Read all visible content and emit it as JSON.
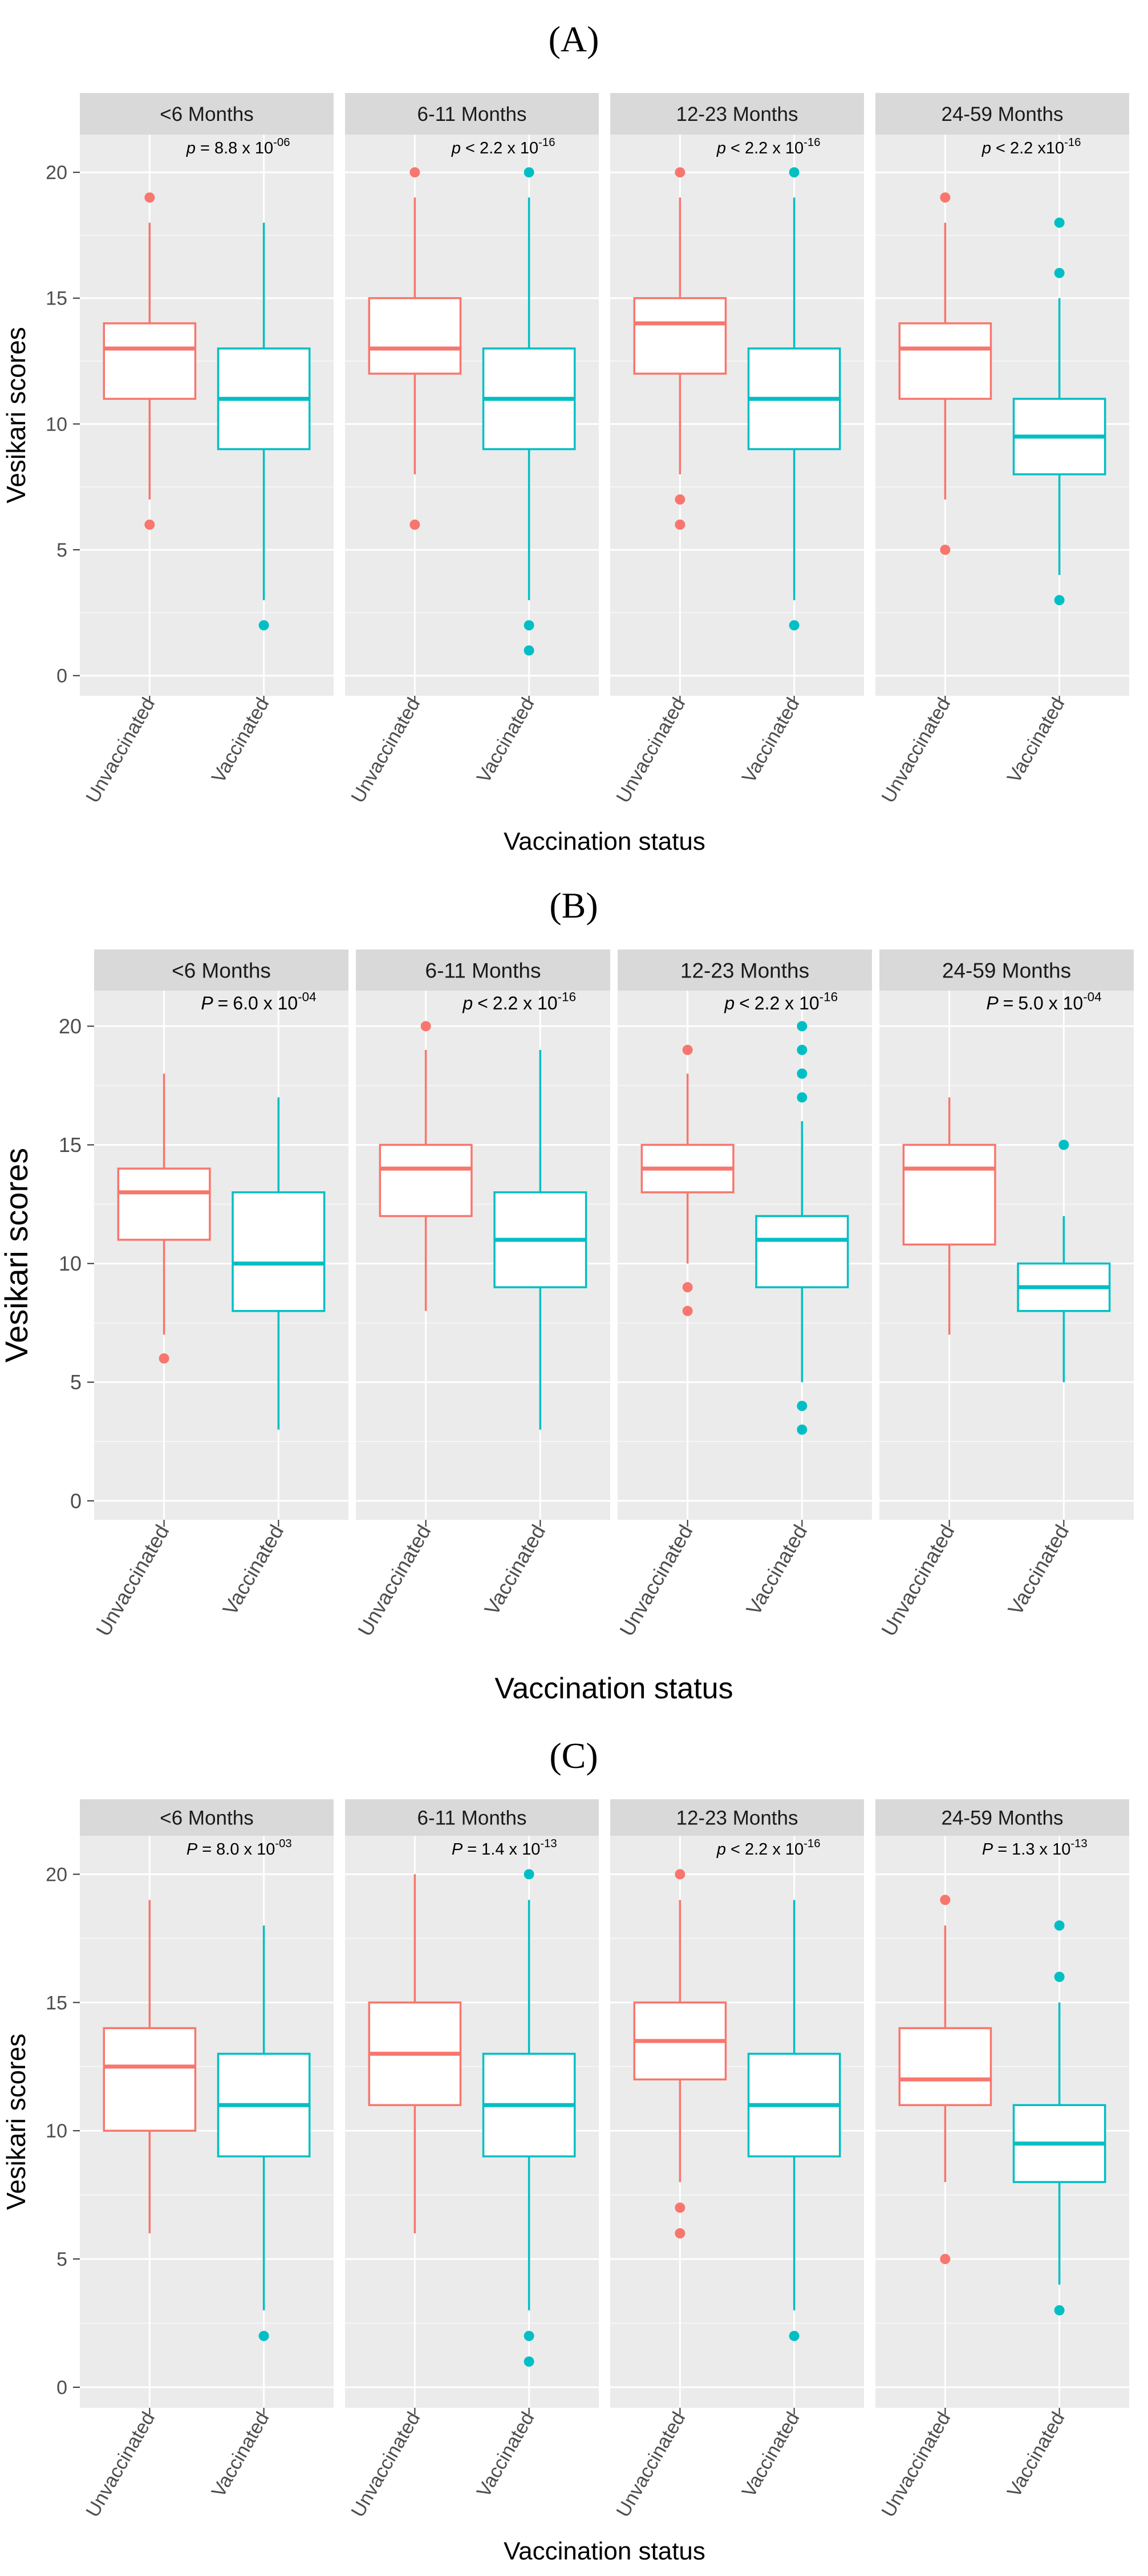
{
  "figure": {
    "panel_labels": [
      "(A)",
      "(B)",
      "(C)"
    ],
    "colors": {
      "unvaccinated": "#F8766D",
      "vaccinated": "#00BFC4",
      "facet_bg": "#EBEBEB",
      "strip_bg": "#D9D9D9",
      "grid": "#FFFFFF",
      "text": "#333333"
    }
  },
  "chart_data": [
    {
      "type": "boxplot",
      "panel": "(A)",
      "ylabel": "Vesikari scores",
      "xlabel": "Vaccination status",
      "ylim": [
        -0.8,
        21.5
      ],
      "yticks": [
        0,
        5,
        10,
        15,
        20
      ],
      "categories": [
        "Unvaccinated",
        "Vaccinated"
      ],
      "facets": [
        {
          "label": "<6 Months",
          "p_prefix": "p",
          "p_op": "=",
          "p_value": "8.8 x 10",
          "p_exp": "-06",
          "boxes": [
            {
              "group": "Unvaccinated",
              "q1": 11,
              "median": 13,
              "q3": 14,
              "lower": 7,
              "upper": 18,
              "outliers": [
                6,
                19
              ]
            },
            {
              "group": "Vaccinated",
              "q1": 9,
              "median": 11,
              "q3": 13,
              "lower": 3,
              "upper": 18,
              "outliers": [
                2
              ]
            }
          ]
        },
        {
          "label": "6-11 Months",
          "p_prefix": "p",
          "p_op": "<",
          "p_value": "2.2 x 10",
          "p_exp": "-16",
          "boxes": [
            {
              "group": "Unvaccinated",
              "q1": 12,
              "median": 13,
              "q3": 15,
              "lower": 8,
              "upper": 19,
              "outliers": [
                6,
                20
              ]
            },
            {
              "group": "Vaccinated",
              "q1": 9,
              "median": 11,
              "q3": 13,
              "lower": 3,
              "upper": 19,
              "outliers": [
                1,
                2,
                20
              ]
            }
          ]
        },
        {
          "label": "12-23 Months",
          "p_prefix": "p",
          "p_op": "<",
          "p_value": "2.2 x 10",
          "p_exp": "-16",
          "boxes": [
            {
              "group": "Unvaccinated",
              "q1": 12,
              "median": 14,
              "q3": 15,
              "lower": 8,
              "upper": 19,
              "outliers": [
                6,
                7,
                20
              ]
            },
            {
              "group": "Vaccinated",
              "q1": 9,
              "median": 11,
              "q3": 13,
              "lower": 3,
              "upper": 19,
              "outliers": [
                2,
                20
              ]
            }
          ]
        },
        {
          "label": "24-59 Months",
          "p_prefix": "p",
          "p_op": "<",
          "p_value": "2.2 x10",
          "p_exp": "-16",
          "boxes": [
            {
              "group": "Unvaccinated",
              "q1": 11,
              "median": 13,
              "q3": 14,
              "lower": 7,
              "upper": 18,
              "outliers": [
                5,
                19
              ]
            },
            {
              "group": "Vaccinated",
              "q1": 8,
              "median": 9.5,
              "q3": 11,
              "lower": 4,
              "upper": 15,
              "outliers": [
                3,
                16,
                18
              ]
            }
          ]
        }
      ]
    },
    {
      "type": "boxplot",
      "panel": "(B)",
      "ylabel": "Vesikari scores",
      "xlabel": "Vaccination status",
      "ylim": [
        -0.8,
        21.5
      ],
      "yticks": [
        0,
        5,
        10,
        15,
        20
      ],
      "categories": [
        "Unvaccinated",
        "Vaccinated"
      ],
      "facets": [
        {
          "label": "<6 Months",
          "p_prefix": "P",
          "p_op": "=",
          "p_value": "6.0 x 10",
          "p_exp": "-04",
          "boxes": [
            {
              "group": "Unvaccinated",
              "q1": 11,
              "median": 13,
              "q3": 14,
              "lower": 7,
              "upper": 18,
              "outliers": [
                6
              ]
            },
            {
              "group": "Vaccinated",
              "q1": 8,
              "median": 10,
              "q3": 13,
              "lower": 3,
              "upper": 17,
              "outliers": []
            }
          ]
        },
        {
          "label": "6-11 Months",
          "p_prefix": "p",
          "p_op": "<",
          "p_value": "2.2 x 10",
          "p_exp": "-16",
          "boxes": [
            {
              "group": "Unvaccinated",
              "q1": 12,
              "median": 14,
              "q3": 15,
              "lower": 8,
              "upper": 19,
              "outliers": [
                20
              ]
            },
            {
              "group": "Vaccinated",
              "q1": 9,
              "median": 11,
              "q3": 13,
              "lower": 3,
              "upper": 19,
              "outliers": []
            }
          ]
        },
        {
          "label": "12-23 Months",
          "p_prefix": "p",
          "p_op": "<",
          "p_value": "2.2 x 10",
          "p_exp": "-16",
          "boxes": [
            {
              "group": "Unvaccinated",
              "q1": 13,
              "median": 14,
              "q3": 15,
              "lower": 10,
              "upper": 18,
              "outliers": [
                8,
                9,
                19
              ]
            },
            {
              "group": "Vaccinated",
              "q1": 9,
              "median": 11,
              "q3": 12,
              "lower": 5,
              "upper": 16,
              "outliers": [
                3,
                4,
                17,
                18,
                19,
                20
              ]
            }
          ]
        },
        {
          "label": "24-59 Months",
          "p_prefix": "P",
          "p_op": "=",
          "p_value": "5.0 x 10",
          "p_exp": "-04",
          "boxes": [
            {
              "group": "Unvaccinated",
              "q1": 10.8,
              "median": 14,
              "q3": 15,
              "lower": 7,
              "upper": 17,
              "outliers": []
            },
            {
              "group": "Vaccinated",
              "q1": 8,
              "median": 9,
              "q3": 10,
              "lower": 5,
              "upper": 12,
              "outliers": [
                15
              ]
            }
          ]
        }
      ]
    },
    {
      "type": "boxplot",
      "panel": "(C)",
      "ylabel": "Vesikari scores",
      "xlabel": "Vaccination status",
      "ylim": [
        -0.8,
        21.5
      ],
      "yticks": [
        0,
        5,
        10,
        15,
        20
      ],
      "categories": [
        "Unvaccinated",
        "Vaccinated"
      ],
      "facets": [
        {
          "label": "<6 Months",
          "p_prefix": "P",
          "p_op": "=",
          "p_value": "8.0 x 10",
          "p_exp": "-03",
          "boxes": [
            {
              "group": "Unvaccinated",
              "q1": 10,
              "median": 12.5,
              "q3": 14,
              "lower": 6,
              "upper": 19,
              "outliers": []
            },
            {
              "group": "Vaccinated",
              "q1": 9,
              "median": 11,
              "q3": 13,
              "lower": 3,
              "upper": 18,
              "outliers": [
                2
              ]
            }
          ]
        },
        {
          "label": "6-11 Months",
          "p_prefix": "P",
          "p_op": "=",
          "p_value": "1.4 x 10",
          "p_exp": "-13",
          "boxes": [
            {
              "group": "Unvaccinated",
              "q1": 11,
              "median": 13,
              "q3": 15,
              "lower": 6,
              "upper": 20,
              "outliers": []
            },
            {
              "group": "Vaccinated",
              "q1": 9,
              "median": 11,
              "q3": 13,
              "lower": 3,
              "upper": 19,
              "outliers": [
                1,
                2,
                20
              ]
            }
          ]
        },
        {
          "label": "12-23 Months",
          "p_prefix": "p",
          "p_op": "<",
          "p_value": "2.2 x 10",
          "p_exp": "-16",
          "boxes": [
            {
              "group": "Unvaccinated",
              "q1": 12,
              "median": 13.5,
              "q3": 15,
              "lower": 8,
              "upper": 19,
              "outliers": [
                6,
                7,
                20
              ]
            },
            {
              "group": "Vaccinated",
              "q1": 9,
              "median": 11,
              "q3": 13,
              "lower": 3,
              "upper": 19,
              "outliers": [
                2
              ]
            }
          ]
        },
        {
          "label": "24-59 Months",
          "p_prefix": "P",
          "p_op": "=",
          "p_value": "1.3 x 10",
          "p_exp": "-13",
          "boxes": [
            {
              "group": "Unvaccinated",
              "q1": 11,
              "median": 12,
              "q3": 14,
              "lower": 8,
              "upper": 18,
              "outliers": [
                5,
                19
              ]
            },
            {
              "group": "Vaccinated",
              "q1": 8,
              "median": 9.5,
              "q3": 11,
              "lower": 4,
              "upper": 15,
              "outliers": [
                3,
                16,
                18
              ]
            }
          ]
        }
      ]
    }
  ]
}
